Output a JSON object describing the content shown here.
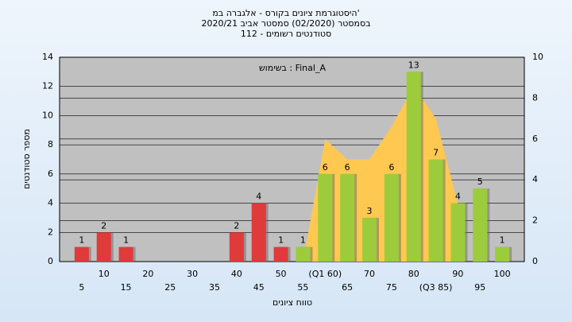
{
  "chart_data": {
    "type": "bar",
    "title": [
      "היסטוגרמת ציונים בקורס - אלגברה במ'",
      "בסמסטר (02/2020) סמסטר אביב 2020/21",
      "סטודנטים רשומים - 112"
    ],
    "annotation": "בשימוש : Final_A",
    "x_label": "טווח ציונים",
    "y_label": "מספר סטודנטים",
    "categories": [
      "5",
      "10",
      "15",
      "20",
      "25",
      "30",
      "35",
      "40",
      "45",
      "50",
      "55",
      "(Q1 60)",
      "65",
      "70",
      "75",
      "80",
      "(Q3 85)",
      "90",
      "95",
      "100"
    ],
    "values": [
      1,
      2,
      1,
      0,
      0,
      0,
      0,
      2,
      4,
      1,
      1,
      6,
      6,
      3,
      6,
      13,
      7,
      4,
      5,
      1
    ],
    "value_labels": [
      "1",
      "2",
      "1",
      null,
      null,
      null,
      null,
      "2",
      "4",
      "1",
      "1",
      "6",
      "6",
      "3",
      "6",
      "13",
      "7",
      "4",
      "5",
      "1"
    ],
    "colors": [
      "#e03a3a",
      "#e03a3a",
      "#e03a3a",
      "#e03a3a",
      "#e03a3a",
      "#e03a3a",
      "#e03a3a",
      "#e03a3a",
      "#e03a3a",
      "#e03a3a",
      "#9ccc3c",
      "#9ccc3c",
      "#9ccc3c",
      "#9ccc3c",
      "#9ccc3c",
      "#9ccc3c",
      "#9ccc3c",
      "#9ccc3c",
      "#9ccc3c",
      "#9ccc3c"
    ],
    "area": {
      "axis": "y2",
      "color": "#ffc850",
      "values": [
        null,
        null,
        null,
        null,
        null,
        null,
        null,
        null,
        null,
        null,
        0,
        6,
        5,
        5,
        6.6,
        8.6,
        7,
        2.8,
        null,
        null
      ]
    },
    "ylim": [
      0,
      14
    ],
    "yticks": [
      0,
      2,
      4,
      6,
      8,
      10,
      12,
      14
    ],
    "y2lim": [
      0,
      10
    ],
    "y2ticks": [
      0,
      2,
      4,
      6,
      8,
      10
    ],
    "grid": true
  }
}
